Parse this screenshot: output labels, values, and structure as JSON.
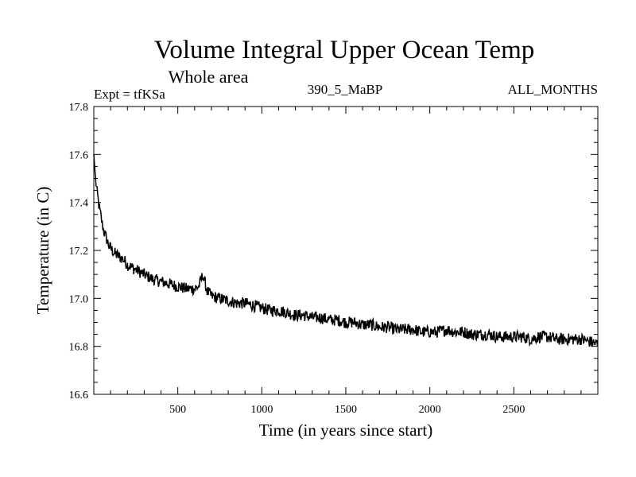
{
  "chart_data": {
    "type": "line",
    "title": "Volume Integral Upper Ocean Temp",
    "subtitle": "Whole area",
    "expt_label": "Expt = tfKSa",
    "run_label": "390_5_MaBP",
    "months_label": "ALL_MONTHS",
    "xlabel": "Time (in years since start)",
    "ylabel": "Temperature (in C)",
    "xlim": [
      0,
      3000
    ],
    "ylim": [
      16.6,
      17.8
    ],
    "xticks": [
      {
        "value": 500,
        "label": "500"
      },
      {
        "value": 1000,
        "label": "1000"
      },
      {
        "value": 1500,
        "label": "1500"
      },
      {
        "value": 2000,
        "label": "2000"
      },
      {
        "value": 2500,
        "label": "2500"
      }
    ],
    "yticks": [
      {
        "value": 16.6,
        "label": "16.6"
      },
      {
        "value": 16.8,
        "label": "16.8"
      },
      {
        "value": 17.0,
        "label": "17.0"
      },
      {
        "value": 17.2,
        "label": "17.2"
      },
      {
        "value": 17.4,
        "label": "17.4"
      },
      {
        "value": 17.6,
        "label": "17.6"
      },
      {
        "value": 17.8,
        "label": "17.8"
      }
    ],
    "grid": false,
    "line_color": "#000000",
    "series": [
      {
        "name": "Volume Integral Upper Ocean Temp",
        "x": [
          0,
          10,
          20,
          30,
          40,
          50,
          60,
          70,
          80,
          90,
          100,
          120,
          140,
          160,
          180,
          200,
          225,
          250,
          275,
          300,
          350,
          400,
          450,
          500,
          550,
          600,
          625,
          640,
          650,
          660,
          675,
          700,
          750,
          800,
          850,
          900,
          950,
          1000,
          1050,
          1100,
          1150,
          1200,
          1250,
          1300,
          1350,
          1400,
          1450,
          1500,
          1550,
          1600,
          1650,
          1700,
          1750,
          1800,
          1850,
          1900,
          1950,
          2000,
          2050,
          2100,
          2150,
          2200,
          2250,
          2300,
          2350,
          2400,
          2450,
          2500,
          2550,
          2600,
          2650,
          2700,
          2750,
          2800,
          2850,
          2900,
          2950,
          3000
        ],
        "values": [
          17.6,
          17.5,
          17.44,
          17.39,
          17.35,
          17.31,
          17.28,
          17.26,
          17.24,
          17.22,
          17.21,
          17.19,
          17.18,
          17.17,
          17.16,
          17.14,
          17.13,
          17.12,
          17.11,
          17.1,
          17.08,
          17.07,
          17.06,
          17.05,
          17.04,
          17.04,
          17.05,
          17.08,
          17.1,
          17.07,
          17.03,
          17.01,
          17.0,
          16.99,
          16.98,
          16.98,
          16.97,
          16.96,
          16.95,
          16.95,
          16.94,
          16.93,
          16.93,
          16.92,
          16.92,
          16.91,
          16.91,
          16.9,
          16.9,
          16.89,
          16.89,
          16.88,
          16.88,
          16.87,
          16.87,
          16.87,
          16.86,
          16.86,
          16.86,
          16.87,
          16.86,
          16.86,
          16.85,
          16.85,
          16.85,
          16.84,
          16.84,
          16.84,
          16.84,
          16.83,
          16.84,
          16.84,
          16.83,
          16.83,
          16.83,
          16.83,
          16.82,
          16.81
        ]
      }
    ]
  }
}
